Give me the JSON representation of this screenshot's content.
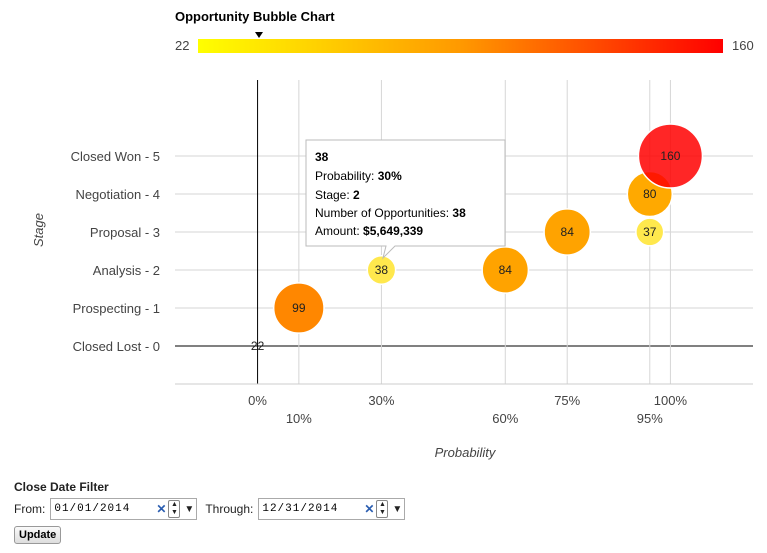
{
  "chart_data": {
    "type": "scatter",
    "title": "Opportunity Bubble Chart",
    "xlabel": "Probability",
    "ylabel": "Stage",
    "x_ticks": [
      {
        "value": 0,
        "label": "0%",
        "row": 0
      },
      {
        "value": 10,
        "label": "10%",
        "row": 1
      },
      {
        "value": 30,
        "label": "30%",
        "row": 0
      },
      {
        "value": 60,
        "label": "60%",
        "row": 1
      },
      {
        "value": 75,
        "label": "75%",
        "row": 0
      },
      {
        "value": 95,
        "label": "95%",
        "row": 1
      },
      {
        "value": 100,
        "label": "100%",
        "row": 0
      }
    ],
    "y_ticks": [
      {
        "value": 0,
        "label": "Closed Lost - 0"
      },
      {
        "value": 1,
        "label": "Prospecting - 1"
      },
      {
        "value": 2,
        "label": "Analysis - 2"
      },
      {
        "value": 3,
        "label": "Proposal - 3"
      },
      {
        "value": 4,
        "label": "Negotiation - 4"
      },
      {
        "value": 5,
        "label": "Closed Won - 5"
      }
    ],
    "xlim": [
      -20,
      120
    ],
    "ylim": [
      -1,
      7
    ],
    "grid": true,
    "color_scale": {
      "min": 22,
      "max": 160,
      "min_label": "22",
      "max_label": "160",
      "min_color": "#ffff00",
      "max_color": "#ff0000",
      "marker_value": 22
    },
    "points": [
      {
        "x": 0,
        "y": 0,
        "count": 22
      },
      {
        "x": 10,
        "y": 1,
        "count": 99
      },
      {
        "x": 30,
        "y": 2,
        "count": 38
      },
      {
        "x": 60,
        "y": 2,
        "count": 84
      },
      {
        "x": 75,
        "y": 3,
        "count": 84
      },
      {
        "x": 95,
        "y": 3,
        "count": 37
      },
      {
        "x": 95,
        "y": 4,
        "count": 80
      },
      {
        "x": 100,
        "y": 5,
        "count": 160
      }
    ],
    "tooltip": {
      "title": "38",
      "lines": [
        {
          "label": "Probability:",
          "value": "30%"
        },
        {
          "label": "Stage:",
          "value": "2"
        },
        {
          "label": "Number of Opportunities:",
          "value": "38"
        },
        {
          "label": "Amount:",
          "value": "$5,649,339"
        }
      ]
    }
  },
  "filter": {
    "title": "Close Date Filter",
    "from_label": "From:",
    "from_value": "01/01/2014",
    "through_label": "Through:",
    "through_value": "12/31/2014",
    "update_label": "Update"
  }
}
